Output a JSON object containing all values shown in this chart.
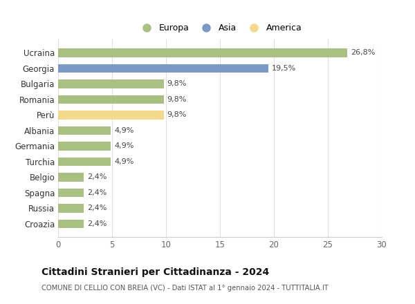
{
  "categories": [
    "Croazia",
    "Russia",
    "Spagna",
    "Belgio",
    "Turchia",
    "Germania",
    "Albania",
    "Perù",
    "Romania",
    "Bulgaria",
    "Georgia",
    "Ucraina"
  ],
  "values": [
    2.4,
    2.4,
    2.4,
    2.4,
    4.9,
    4.9,
    4.9,
    9.8,
    9.8,
    9.8,
    19.5,
    26.8
  ],
  "colors": [
    "#a8c080",
    "#a8c080",
    "#a8c080",
    "#a8c080",
    "#a8c080",
    "#a8c080",
    "#a8c080",
    "#f5d98b",
    "#a8c080",
    "#a8c080",
    "#7a99c8",
    "#a8c080"
  ],
  "labels": [
    "2,4%",
    "2,4%",
    "2,4%",
    "2,4%",
    "4,9%",
    "4,9%",
    "4,9%",
    "9,8%",
    "9,8%",
    "9,8%",
    "19,5%",
    "26,8%"
  ],
  "legend": [
    {
      "label": "Europa",
      "color": "#a8c080"
    },
    {
      "label": "Asia",
      "color": "#7a99c8"
    },
    {
      "label": "America",
      "color": "#f5d98b"
    }
  ],
  "xlim": [
    0,
    30
  ],
  "xticks": [
    0,
    5,
    10,
    15,
    20,
    25,
    30
  ],
  "title": "Cittadini Stranieri per Cittadinanza - 2024",
  "subtitle": "COMUNE DI CELLIO CON BREIA (VC) - Dati ISTAT al 1° gennaio 2024 - TUTTITALIA.IT",
  "background_color": "#ffffff",
  "grid_color": "#e0e0e0"
}
